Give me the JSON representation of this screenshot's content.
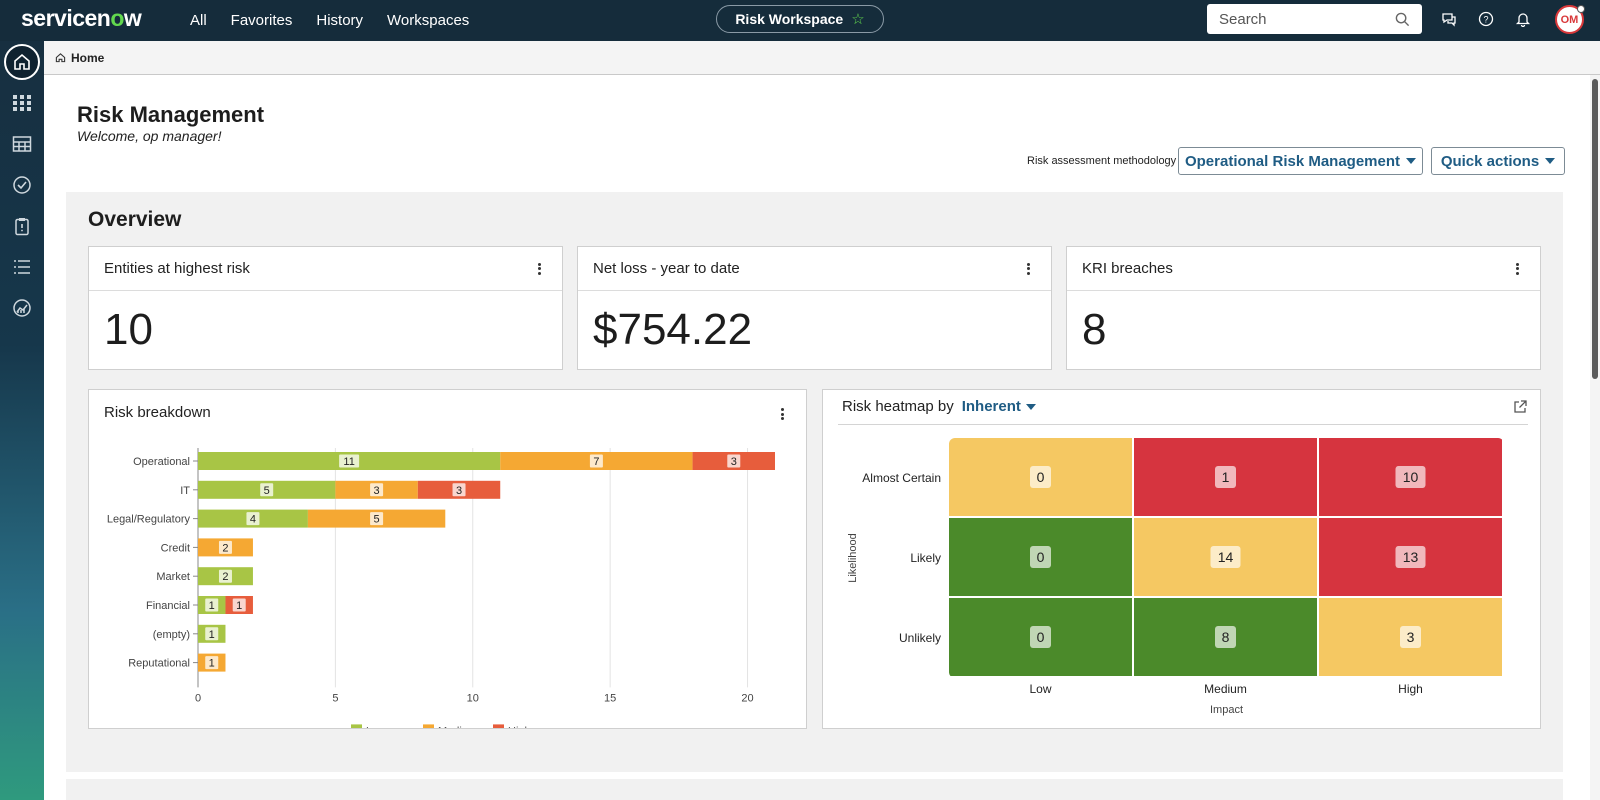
{
  "topbar": {
    "logo_prefix": "servicen",
    "logo_o": "o",
    "logo_suffix": "w",
    "nav": [
      "All",
      "Favorites",
      "History",
      "Workspaces"
    ],
    "workspace_label": "Risk Workspace",
    "search_placeholder": "Search",
    "avatar_initials": "OM"
  },
  "sidebar": {
    "icons": [
      "home-icon",
      "apps-grid-icon",
      "table-icon",
      "check-circle-icon",
      "clipboard-icon",
      "list-icon",
      "analytics-icon"
    ]
  },
  "breadcrumb": {
    "home_label": "Home"
  },
  "page": {
    "title": "Risk Management",
    "welcome": "Welcome, op manager!",
    "methodology_label": "Risk assessment methodology",
    "methodology_value": "Operational Risk Management",
    "quick_actions": "Quick actions"
  },
  "overview": {
    "title": "Overview",
    "kpis": [
      {
        "label": "Entities at highest risk",
        "value": "10"
      },
      {
        "label": "Net loss - year to date",
        "value": "$754.22"
      },
      {
        "label": "KRI breaches",
        "value": "8"
      }
    ]
  },
  "colors": {
    "low": "#a8c545",
    "medium": "#f5a833",
    "high": "#e75d3c",
    "heat_green": "#4b8a2a",
    "heat_yellow": "#f5c862",
    "heat_red": "#d6343f"
  },
  "chart_data": [
    {
      "type": "bar",
      "orientation": "horizontal",
      "stacked": true,
      "title": "Risk breakdown",
      "categories": [
        "Operational",
        "IT",
        "Legal/Regulatory",
        "Credit",
        "Market",
        "Financial",
        "(empty)",
        "Reputational"
      ],
      "series": [
        {
          "name": "Low",
          "color": "#a8c545",
          "values": [
            11,
            5,
            4,
            0,
            2,
            1,
            1,
            0
          ]
        },
        {
          "name": "Medium",
          "color": "#f5a833",
          "values": [
            7,
            3,
            5,
            2,
            0,
            0,
            0,
            1
          ]
        },
        {
          "name": "High",
          "color": "#e75d3c",
          "values": [
            3,
            3,
            0,
            0,
            0,
            1,
            0,
            0
          ]
        }
      ],
      "xticks": [
        0,
        5,
        10,
        15,
        20
      ],
      "xlim": [
        0,
        21
      ],
      "grid": true,
      "legend": "bottom"
    },
    {
      "type": "heatmap",
      "title_prefix": "Risk heatmap by",
      "selector": "Inherent",
      "xlabel": "Impact",
      "ylabel": "Likelihood",
      "x_categories": [
        "Low",
        "Medium",
        "High"
      ],
      "y_categories": [
        "Almost Certain",
        "Likely",
        "Unlikely"
      ],
      "values": [
        [
          0,
          1,
          10
        ],
        [
          0,
          14,
          13
        ],
        [
          0,
          8,
          3
        ]
      ],
      "cell_colors": [
        [
          "yellow",
          "red",
          "red"
        ],
        [
          "green",
          "yellow",
          "red"
        ],
        [
          "green",
          "green",
          "yellow"
        ]
      ]
    }
  ]
}
